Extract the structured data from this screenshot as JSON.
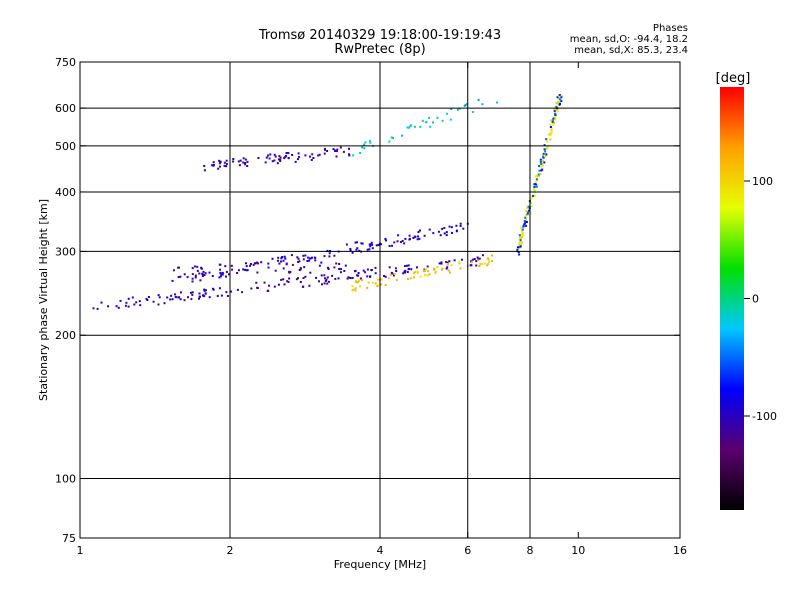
{
  "header": {
    "title_line1": "Tromsø 20140329 19:18:00-19:19:43",
    "title_line2": "RwPretec (8p)",
    "phases_label": "Phases",
    "phases_o": "mean, sd,O: -94.4, 18.2",
    "phases_x": "mean, sd,X: 85.3, 23.4"
  },
  "colorbar": {
    "unit_label": "[deg]",
    "range": [
      -180,
      180
    ],
    "ticks": [
      {
        "value": 100,
        "label": "100"
      },
      {
        "value": 0,
        "label": "0"
      },
      {
        "value": -100,
        "label": "-100"
      }
    ],
    "colors": [
      "#000000",
      "#5a006e",
      "#0000ff",
      "#00c8ff",
      "#00e000",
      "#e6ff00",
      "#ffa000",
      "#ff0000"
    ]
  },
  "chart_data": {
    "type": "scatter",
    "title": "Tromsø 20140329 19:18:00-19:19:43",
    "subtitle": "RwPretec (8p)",
    "xlabel": "Frequency [MHz]",
    "ylabel": "Stationary phase Virtual Height [km]",
    "xscale": "log",
    "yscale": "log",
    "xlim": [
      1,
      16
    ],
    "ylim": [
      75,
      750
    ],
    "x_ticks": [
      1,
      2,
      4,
      6,
      8,
      10,
      16
    ],
    "x_tick_labels": [
      "1",
      "2",
      "4",
      "6",
      "8",
      "10",
      "16"
    ],
    "x_grid": [
      2,
      4,
      6,
      8
    ],
    "y_ticks": [
      75,
      100,
      200,
      300,
      400,
      500,
      600,
      750
    ],
    "y_tick_labels": [
      "75",
      "100",
      "200",
      "300",
      "400",
      "500",
      "600",
      "750"
    ],
    "y_grid": [
      100,
      200,
      300,
      400,
      500,
      600
    ],
    "grid": true,
    "color_encoding": "phase [deg]",
    "traces": [
      {
        "x_start": 1.05,
        "x_end": 6.5,
        "h_start": 230,
        "h_end": 290,
        "phase": -105,
        "points": 170
      },
      {
        "x_start": 3.5,
        "x_end": 6.8,
        "h_start": 255,
        "h_end": 290,
        "phase": 110,
        "points": 70
      },
      {
        "x_start": 1.5,
        "x_end": 6.0,
        "h_start": 260,
        "h_end": 340,
        "phase": -95,
        "points": 140
      },
      {
        "x_start": 1.5,
        "x_end": 3.5,
        "h_start": 275,
        "h_end": 280,
        "phase": -110,
        "points": 50
      },
      {
        "x_start": 1.75,
        "x_end": 3.5,
        "h_start": 455,
        "h_end": 490,
        "phase": -105,
        "points": 80
      },
      {
        "x_start": 3.5,
        "x_end": 7.0,
        "h_start": 490,
        "h_end": 640,
        "phase": -20,
        "points": 40
      },
      {
        "x_start": 7.5,
        "x_end": 9.2,
        "h_start": 300,
        "h_end": 650,
        "phase": 90,
        "points": 120
      },
      {
        "x_start": 7.5,
        "x_end": 9.2,
        "h_start": 300,
        "h_end": 650,
        "phase": -60,
        "points": 70
      }
    ]
  }
}
